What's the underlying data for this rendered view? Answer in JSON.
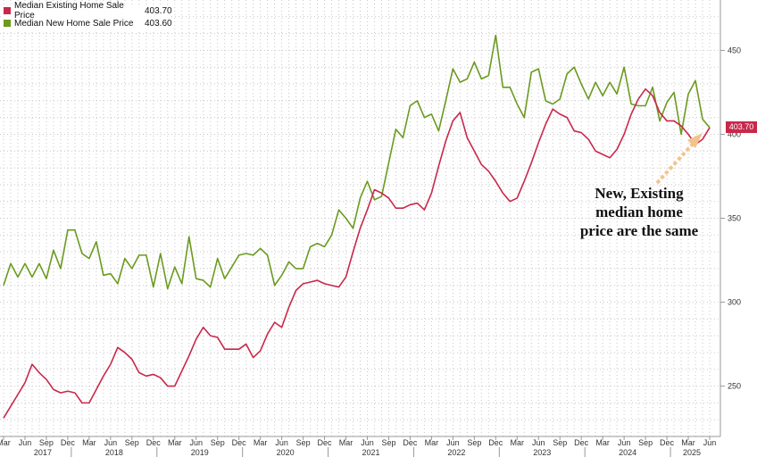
{
  "colors": {
    "existing": "#c8284b",
    "new": "#6b9a1f",
    "arrow": "#f2c38c",
    "grid": "#c8c8c8"
  },
  "legend": [
    {
      "name": "Median Existing Home Sale Price",
      "value": "403.70"
    },
    {
      "name": "Median New Home Sale Price",
      "value": "403.60"
    }
  ],
  "annotation": {
    "lines": [
      "New, Existing",
      "median home",
      "price are the same"
    ]
  },
  "last_value_tag": "403.70",
  "chart_data": {
    "type": "line",
    "y_axis_position": "right",
    "ylim": [
      220,
      480
    ],
    "yticks": [
      250,
      300,
      350,
      400,
      450
    ],
    "grid": true,
    "legend_position": "top-left",
    "x_start": "2017-03",
    "month_labels": [
      "Mar",
      "Jun",
      "Sep",
      "Dec"
    ],
    "year_labels": [
      "2017",
      "2018",
      "2019",
      "2020",
      "2021",
      "2022",
      "2023",
      "2024",
      "2025"
    ],
    "series": [
      {
        "name": "Median Existing Home Sale Price",
        "color": "#c8284b",
        "values": [
          231,
          238,
          245,
          252,
          263,
          258,
          254,
          248,
          246,
          247,
          246,
          240,
          240,
          248,
          256,
          263,
          273,
          270,
          266,
          258,
          256,
          257,
          255,
          250,
          250,
          259,
          268,
          278,
          285,
          280,
          279,
          272,
          272,
          272,
          275,
          267,
          271,
          281,
          288,
          285,
          297,
          307,
          311,
          312,
          313,
          311,
          310,
          309,
          315,
          330,
          344,
          355,
          367,
          365,
          362,
          356,
          356,
          358,
          359,
          355,
          365,
          381,
          396,
          408,
          413,
          398,
          390,
          382,
          378,
          372,
          365,
          360,
          362,
          372,
          383,
          395,
          406,
          415,
          412,
          410,
          402,
          401,
          397,
          390,
          388,
          386,
          391,
          400,
          412,
          421,
          427,
          423,
          413,
          408,
          408,
          405,
          400,
          394,
          397,
          404
        ]
      },
      {
        "name": "Median New Home Sale Price",
        "color": "#6b9a1f",
        "values": [
          310,
          323,
          315,
          323,
          315,
          323,
          314,
          331,
          320,
          343,
          343,
          329,
          326,
          336,
          316,
          317,
          311,
          326,
          320,
          328,
          328,
          309,
          329,
          308,
          321,
          311,
          339,
          314,
          313,
          309,
          326,
          314,
          321,
          328,
          329,
          328,
          332,
          328,
          310,
          316,
          324,
          320,
          320,
          333,
          335,
          333,
          340,
          355,
          350,
          344,
          362,
          372,
          361,
          363,
          383,
          403,
          398,
          417,
          420,
          410,
          412,
          402,
          420,
          439,
          431,
          433,
          443,
          433,
          435,
          459,
          428,
          428,
          418,
          410,
          437,
          439,
          420,
          418,
          421,
          436,
          440,
          430,
          421,
          431,
          423,
          431,
          424,
          440,
          418,
          417,
          417,
          428,
          408,
          419,
          425,
          400,
          424,
          432,
          409,
          404
        ]
      }
    ]
  }
}
